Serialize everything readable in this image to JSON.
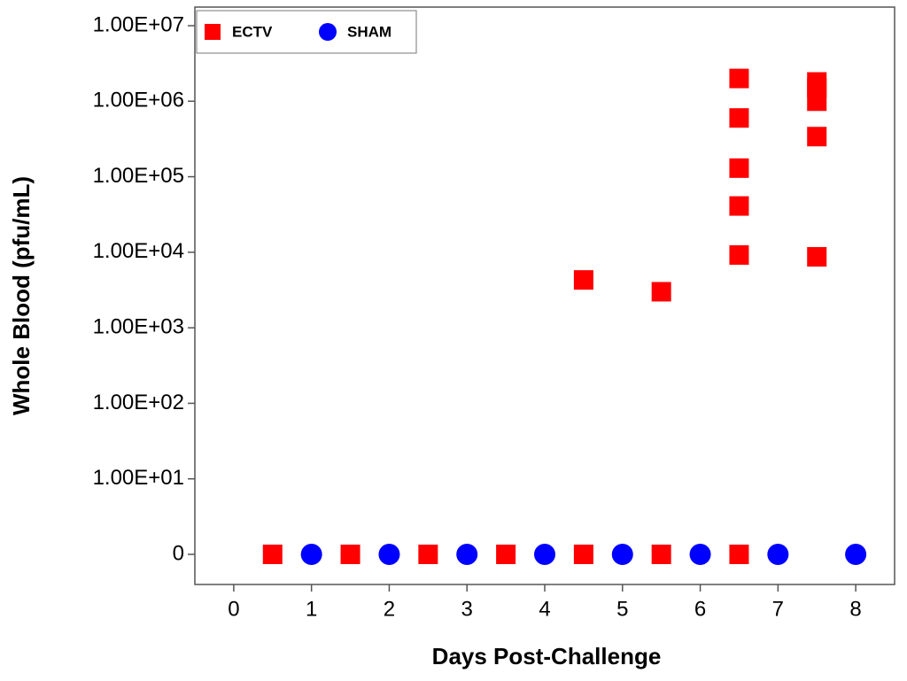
{
  "chart_data": {
    "type": "scatter",
    "xlabel": "Days Post-Challenge",
    "ylabel": "Whole Blood (pfu/mL)",
    "xlim": [
      -0.5,
      8.5
    ],
    "xticks": [
      0,
      1,
      2,
      3,
      4,
      5,
      6,
      7,
      8
    ],
    "ylim": [
      0,
      10000000
    ],
    "yscale": "log",
    "yticks": [
      0,
      {
        "value": 10,
        "label": "1.00E+01"
      },
      {
        "value": 100,
        "label": "1.00E+02"
      },
      {
        "value": 1000,
        "label": "1.00E+03"
      },
      {
        "value": 10000,
        "label": "1.00E+04"
      },
      {
        "value": 100000,
        "label": "1.00E+05"
      },
      {
        "value": 1000000,
        "label": "1.00E+06"
      },
      {
        "value": 10000000,
        "label": "1.00E+07"
      }
    ],
    "legend": "upper left",
    "series": [
      {
        "name": "ECTV",
        "color": "#ff0000",
        "marker": "square",
        "x": [
          0.5,
          1.5,
          2.5,
          3.5,
          4.5,
          4.5,
          5.5,
          5.5,
          6.5,
          6.5,
          6.5,
          6.5,
          6.5,
          6.5,
          7.5,
          7.5,
          7.5,
          7.5,
          7.5
        ],
        "values": [
          0,
          0,
          0,
          0,
          0,
          4300,
          0,
          3000,
          0,
          9200,
          41000,
          130000,
          600000,
          2000000,
          8700,
          340000,
          1000000,
          1500000,
          1800000
        ]
      },
      {
        "name": "SHAM",
        "color": "#0000ff",
        "marker": "circle",
        "x": [
          1,
          2,
          3,
          4,
          5,
          6,
          7,
          8
        ],
        "values": [
          0,
          0,
          0,
          0,
          0,
          0,
          0,
          0
        ]
      }
    ]
  }
}
